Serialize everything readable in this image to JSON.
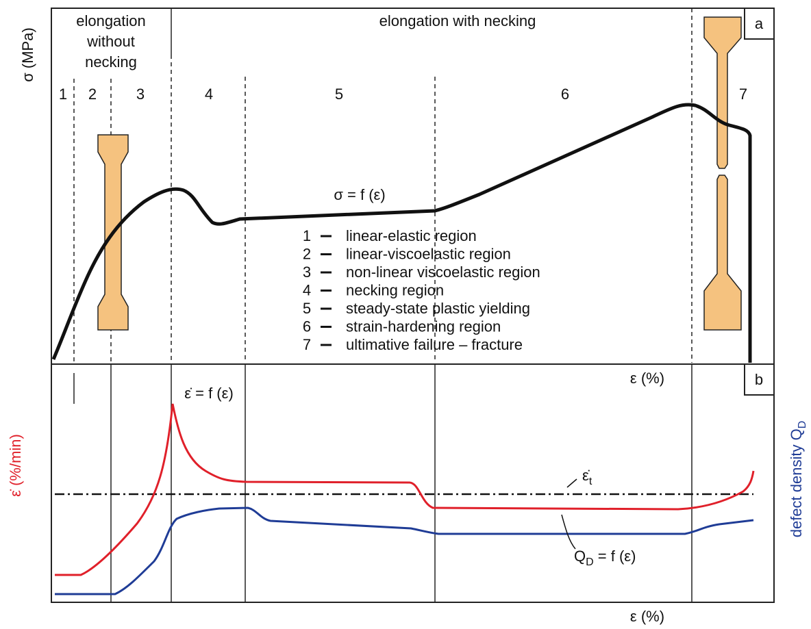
{
  "y_axis_label": "σ  (MPa)",
  "header": {
    "without_necking": [
      "elongation",
      "without",
      "necking"
    ],
    "with_necking": "elongation with necking"
  },
  "panel_labels": [
    "a",
    "b"
  ],
  "regions": [
    "1",
    "2",
    "3",
    "4",
    "5",
    "6",
    "7"
  ],
  "stress_curve_label": "σ = f (ε)",
  "legend": [
    {
      "number": "1",
      "text": "linear-elastic region"
    },
    {
      "number": "2",
      "text": "linear-viscoelastic region"
    },
    {
      "number": "3",
      "text": "non-linear viscoelastic region"
    },
    {
      "number": "4",
      "text": "necking region"
    },
    {
      "number": "5",
      "text": "steady-state plastic yielding"
    },
    {
      "number": "6",
      "text": "strain-hardening region"
    },
    {
      "number": "7",
      "text": "ultimative failure – fracture"
    }
  ],
  "top_x_label": "ε (%)",
  "rate_curve_label": "ε̇ = f (ε)",
  "rate_axis_label": "ε̇ (%/min)",
  "defect_axis_label": {
    "text": "defect density Q",
    "subscript": "D"
  },
  "threshold_label": {
    "text": "ε̇",
    "subscript": "t"
  },
  "defect_curve_label": {
    "text": "Q",
    "subscript": "D",
    "rest": " = f (ε)"
  },
  "bottom_x_label": "ε (%)"
}
